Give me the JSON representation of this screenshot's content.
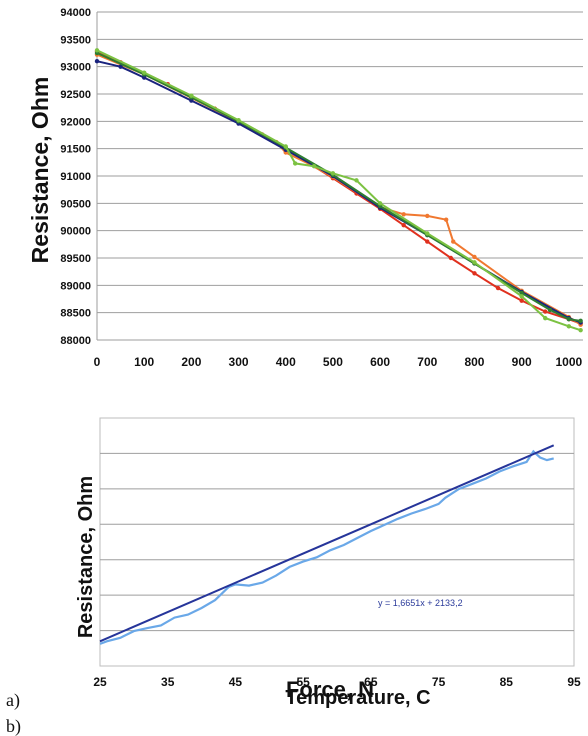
{
  "figure": {
    "panel_labels": [
      "a)",
      "b)"
    ]
  },
  "chart_data": [
    {
      "type": "line",
      "title": "",
      "xlabel": "Force, N",
      "ylabel": "Resistance, Ohm",
      "xlim": [
        0,
        1030
      ],
      "ylim": [
        88000,
        94000
      ],
      "x_ticks": [
        0,
        100,
        200,
        300,
        400,
        500,
        600,
        700,
        800,
        900,
        1000
      ],
      "y_ticks": [
        88000,
        88500,
        89000,
        89500,
        90000,
        90500,
        91000,
        91500,
        92000,
        92500,
        93000,
        93500,
        94000
      ],
      "grid": "horizontal",
      "legend": "none",
      "colors": [
        "#e0301e",
        "#f07830",
        "#1a237e",
        "#2e7d32",
        "#7cc242",
        "#9c27b0",
        "#00897b",
        "#5c6bc0"
      ],
      "series": [
        {
          "color": "#e0301e",
          "points": [
            [
              0,
              93280
            ],
            [
              50,
              93080
            ],
            [
              100,
              92880
            ],
            [
              150,
              92680
            ],
            [
              200,
              92450
            ],
            [
              250,
              92230
            ],
            [
              300,
              92000
            ],
            [
              350,
              91760
            ],
            [
              400,
              91500
            ],
            [
              450,
              91230
            ],
            [
              500,
              90960
            ],
            [
              550,
              90680
            ],
            [
              600,
              90400
            ],
            [
              650,
              90100
            ],
            [
              700,
              89800
            ],
            [
              750,
              89500
            ],
            [
              800,
              89220
            ],
            [
              850,
              88950
            ],
            [
              900,
              88720
            ],
            [
              950,
              88520
            ],
            [
              1000,
              88380
            ],
            [
              1025,
              88300
            ]
          ]
        },
        {
          "color": "#f07830",
          "points": [
            [
              0,
              93220
            ],
            [
              100,
              92860
            ],
            [
              200,
              92430
            ],
            [
              300,
              91990
            ],
            [
              380,
              91620
            ],
            [
              400,
              91430
            ],
            [
              450,
              91220
            ],
            [
              500,
              90980
            ],
            [
              600,
              90430
            ],
            [
              650,
              90300
            ],
            [
              700,
              90270
            ],
            [
              740,
              90200
            ],
            [
              755,
              89800
            ],
            [
              800,
              89520
            ],
            [
              900,
              88900
            ],
            [
              1000,
              88420
            ],
            [
              1025,
              88280
            ]
          ]
        },
        {
          "color": "#1a237e",
          "points": [
            [
              0,
              93100
            ],
            [
              50,
              93000
            ],
            [
              100,
              92800
            ],
            [
              200,
              92380
            ],
            [
              300,
              91960
            ],
            [
              400,
              91480
            ],
            [
              500,
              91000
            ],
            [
              600,
              90420
            ],
            [
              700,
              89920
            ],
            [
              800,
              89400
            ],
            [
              900,
              88880
            ],
            [
              1000,
              88400
            ],
            [
              1025,
              88320
            ]
          ]
        },
        {
          "color": "#2e7d32",
          "points": [
            [
              0,
              93250
            ],
            [
              100,
              92860
            ],
            [
              200,
              92440
            ],
            [
              300,
              92000
            ],
            [
              400,
              91520
            ],
            [
              500,
              91020
            ],
            [
              600,
              90450
            ],
            [
              700,
              89920
            ],
            [
              800,
              89400
            ],
            [
              900,
              88860
            ],
            [
              960,
              88550
            ],
            [
              1000,
              88380
            ],
            [
              1025,
              88350
            ]
          ]
        },
        {
          "color": "#7cc242",
          "points": [
            [
              0,
              93300
            ],
            [
              100,
              92890
            ],
            [
              200,
              92470
            ],
            [
              300,
              92020
            ],
            [
              400,
              91540
            ],
            [
              420,
              91230
            ],
            [
              460,
              91180
            ],
            [
              500,
              91050
            ],
            [
              550,
              90920
            ],
            [
              600,
              90500
            ],
            [
              700,
              89950
            ],
            [
              800,
              89420
            ],
            [
              900,
              88800
            ],
            [
              950,
              88400
            ],
            [
              1000,
              88250
            ],
            [
              1025,
              88180
            ]
          ]
        }
      ]
    },
    {
      "type": "line",
      "title": "",
      "xlabel": "Temperature, C",
      "ylabel": "Resistance, Ohm",
      "xlim": [
        25,
        95
      ],
      "x_ticks": [
        25,
        35,
        45,
        55,
        65,
        75,
        85,
        95
      ],
      "grid": "horizontal",
      "legend": "none",
      "annotation": "y = 1,6651x + 2133,2",
      "colors": [
        "#6aa8e8",
        "#26359a"
      ],
      "series": [
        {
          "color": "#6aa8e8",
          "points": [
            [
              25.0,
              -0.45
            ],
            [
              26,
              -0.3
            ],
            [
              28,
              -0.1
            ],
            [
              30,
              0.28
            ],
            [
              32,
              0.45
            ],
            [
              34,
              0.6
            ],
            [
              36,
              1.05
            ],
            [
              38,
              1.22
            ],
            [
              40,
              1.6
            ],
            [
              42,
              2.05
            ],
            [
              44,
              2.8
            ],
            [
              45,
              2.95
            ],
            [
              47,
              2.88
            ],
            [
              49,
              3.05
            ],
            [
              51,
              3.45
            ],
            [
              53,
              3.95
            ],
            [
              55,
              4.25
            ],
            [
              57,
              4.5
            ],
            [
              59,
              4.9
            ],
            [
              61,
              5.2
            ],
            [
              63,
              5.6
            ],
            [
              65,
              6.0
            ],
            [
              67,
              6.35
            ],
            [
              69,
              6.7
            ],
            [
              71,
              7.0
            ],
            [
              73,
              7.25
            ],
            [
              75,
              7.55
            ],
            [
              76,
              7.9
            ],
            [
              78,
              8.4
            ],
            [
              80,
              8.7
            ],
            [
              82,
              9.0
            ],
            [
              84,
              9.4
            ],
            [
              86,
              9.7
            ],
            [
              88,
              9.95
            ],
            [
              89,
              10.55
            ],
            [
              90,
              10.2
            ],
            [
              91,
              10.05
            ],
            [
              92,
              10.15
            ]
          ]
        },
        {
          "color": "#26359a",
          "points": [
            [
              25,
              -0.3
            ],
            [
              92,
              10.9
            ]
          ]
        }
      ]
    }
  ]
}
